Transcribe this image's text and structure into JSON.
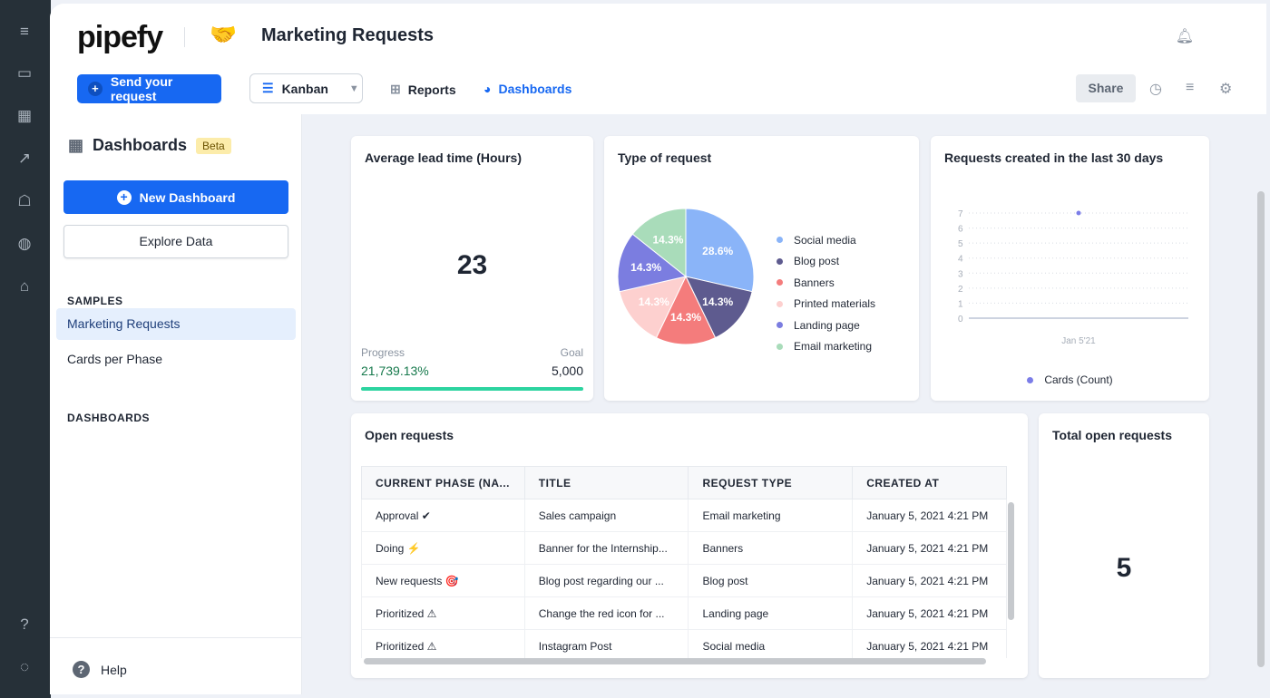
{
  "app": {
    "logo": "pipefy",
    "pipe_title": "Marketing Requests"
  },
  "toolbar": {
    "send_label": "Send your request",
    "view_select": "Kanban",
    "reports": "Reports",
    "dashboards": "Dashboards",
    "share": "Share"
  },
  "sidebar": {
    "title": "Dashboards",
    "badge": "Beta",
    "new_dashboard": "New Dashboard",
    "explore": "Explore Data",
    "samples_heading": "SAMPLES",
    "samples": [
      "Marketing Requests",
      "Cards per Phase"
    ],
    "dashboards_heading": "DASHBOARDS",
    "help": "Help"
  },
  "lead_time": {
    "title": "Average lead time (Hours)",
    "value": "23",
    "progress_label": "Progress",
    "progress_value": "21,739.13%",
    "goal_label": "Goal",
    "goal_value": "5,000",
    "progress_fraction": 1.0
  },
  "open_total": {
    "title": "Total open requests",
    "value": "5"
  },
  "table": {
    "title": "Open requests",
    "columns": [
      "CURRENT PHASE (NA...",
      "TITLE",
      "REQUEST TYPE",
      "CREATED AT"
    ],
    "rows": [
      [
        "Approval ✔",
        "Sales campaign",
        "Email marketing",
        "January 5, 2021 4:21 PM"
      ],
      [
        "Doing ⚡",
        "Banner for the Internship...",
        "Banners",
        "January 5, 2021 4:21 PM"
      ],
      [
        "New requests 🎯",
        "Blog post regarding our ...",
        "Blog post",
        "January 5, 2021 4:21 PM"
      ],
      [
        "Prioritized ⚠",
        "Change the red icon for ...",
        "Landing page",
        "January 5, 2021 4:21 PM"
      ],
      [
        "Prioritized ⚠",
        "Instagram Post",
        "Social media",
        "January 5, 2021 4:21 PM"
      ]
    ]
  },
  "chart_data": [
    {
      "type": "pie",
      "title": "Type of request",
      "categories": [
        "Social media",
        "Blog post",
        "Banners",
        "Printed materials",
        "Landing page",
        "Email marketing"
      ],
      "values": [
        28.6,
        14.3,
        14.3,
        14.3,
        14.3,
        14.3
      ],
      "labels": [
        "28.6%",
        "14.3%",
        "14.3%",
        "14.3%",
        "14.3%",
        "14.3%"
      ],
      "colors": [
        "#8ab4f8",
        "#5e5b8f",
        "#f47c7c",
        "#fdd0cf",
        "#7b7de0",
        "#a9dcba"
      ],
      "legend": "right"
    },
    {
      "type": "scatter",
      "title": "Requests created in the last 30 days",
      "x": [
        "Jan 5'21"
      ],
      "series": [
        {
          "name": "Cards (Count)",
          "values": [
            7
          ],
          "color": "#7b7de8"
        }
      ],
      "yticks": [
        "0",
        "1",
        "2",
        "3",
        "4",
        "5",
        "6",
        "7"
      ],
      "ylim": [
        0,
        7
      ],
      "legend": "bottom",
      "grid": true
    }
  ]
}
